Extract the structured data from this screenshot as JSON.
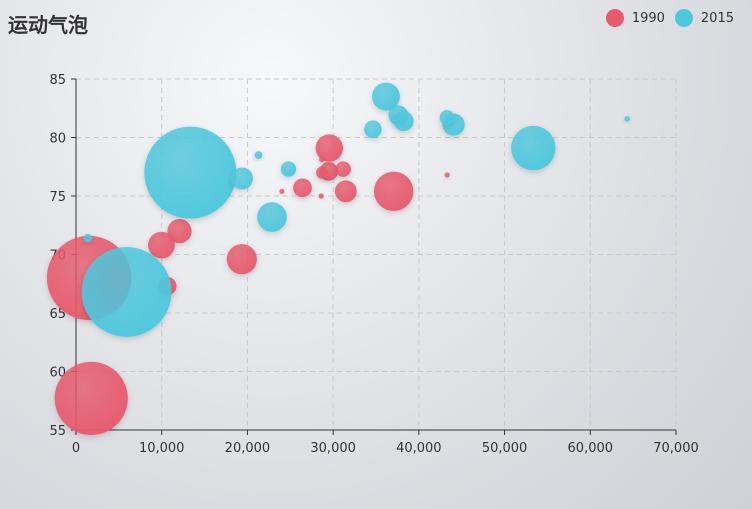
{
  "chart_data": {
    "type": "scatter",
    "title": "运动气泡",
    "xlabel": "",
    "ylabel": "",
    "xlim": [
      0,
      70000
    ],
    "ylim": [
      55,
      85
    ],
    "xticks": [
      "0",
      "10,000",
      "20,000",
      "30,000",
      "40,000",
      "50,000",
      "60,000",
      "70,000"
    ],
    "yticks": [
      "55",
      "60",
      "65",
      "70",
      "75",
      "80",
      "85"
    ],
    "grid": true,
    "legend_position": "top-right",
    "series": [
      {
        "name": "1990",
        "color": "#e8596c",
        "points": [
          {
            "x": 1516,
            "y": 68.0,
            "size": 1154605773
          },
          {
            "x": 1777,
            "y": 57.7,
            "size": 870601776
          },
          {
            "x": 19349,
            "y": 69.6,
            "size": 147568552
          },
          {
            "x": 10670,
            "y": 67.3,
            "size": 53994605
          },
          {
            "x": 12076,
            "y": 72.0,
            "size": 94999240
          },
          {
            "x": 9969,
            "y": 70.8,
            "size": 116400000
          },
          {
            "x": 26424,
            "y": 75.7,
            "size": 57110117
          },
          {
            "x": 29475,
            "y": 77.1,
            "size": 56943299
          },
          {
            "x": 29550,
            "y": 79.1,
            "size": 122249285
          },
          {
            "x": 31476,
            "y": 75.4,
            "size": 77812705
          },
          {
            "x": 37062,
            "y": 75.4,
            "size": 252847810
          },
          {
            "x": 28666,
            "y": 78.1,
            "size": 4285000
          },
          {
            "x": 24021,
            "y": 75.4,
            "size": 3397534
          },
          {
            "x": 43296,
            "y": 76.8,
            "size": 4240375
          },
          {
            "x": 31163,
            "y": 77.3,
            "size": 38923000
          },
          {
            "x": 28599,
            "y": 75.0,
            "size": 4500000
          },
          {
            "x": 28733,
            "y": 77.0,
            "size": 25000000
          }
        ]
      },
      {
        "name": "2015",
        "color": "#4dc8de",
        "points": [
          {
            "x": 13334,
            "y": 77.0,
            "size": 1376048943
          },
          {
            "x": 5903,
            "y": 66.8,
            "size": 1311050527
          },
          {
            "x": 53354,
            "y": 79.1,
            "size": 321773631
          },
          {
            "x": 36162,
            "y": 83.5,
            "size": 126573481
          },
          {
            "x": 44053,
            "y": 81.1,
            "size": 80688545
          },
          {
            "x": 37599,
            "y": 81.9,
            "size": 64395345
          },
          {
            "x": 38225,
            "y": 81.4,
            "size": 64715810
          },
          {
            "x": 43294,
            "y": 81.7,
            "size": 35939927
          },
          {
            "x": 34644,
            "y": 80.7,
            "size": 50293439
          },
          {
            "x": 22857,
            "y": 73.2,
            "size": 143456918
          },
          {
            "x": 19360,
            "y": 76.5,
            "size": 78665830
          },
          {
            "x": 24787,
            "y": 77.3,
            "size": 38611794
          },
          {
            "x": 21291,
            "y": 78.5,
            "size": 10000000
          },
          {
            "x": 1390,
            "y": 71.4,
            "size": 12000000
          },
          {
            "x": 64304,
            "y": 81.6,
            "size": 5210967
          }
        ]
      }
    ]
  }
}
